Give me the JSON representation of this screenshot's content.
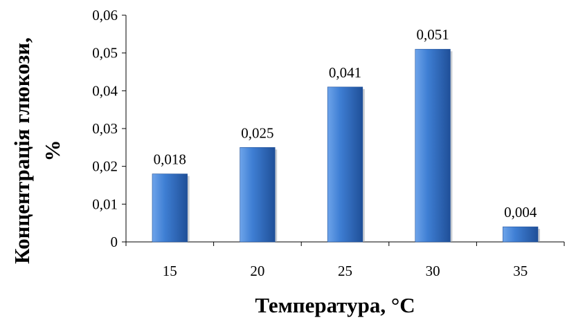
{
  "chart_data": {
    "type": "bar",
    "title": "",
    "xlabel": "Температура, °С",
    "ylabel_line1": "Концентрація глюкози,",
    "ylabel_line2": "%",
    "categories": [
      "15",
      "20",
      "25",
      "30",
      "35"
    ],
    "values": [
      0.018,
      0.025,
      0.041,
      0.051,
      0.004
    ],
    "data_labels": [
      "0,018",
      "0,025",
      "0,041",
      "0,051",
      "0,004"
    ],
    "ylim": [
      0,
      0.06
    ],
    "yticks": [
      0,
      0.01,
      0.02,
      0.03,
      0.04,
      0.05,
      0.06
    ],
    "ytick_labels": [
      "0",
      "0,01",
      "0,02",
      "0,03",
      "0,04",
      "0,05",
      "0,06"
    ],
    "grid": false,
    "legend": "none",
    "bar_color": "#3f7fd4",
    "bar_color_light": "#6ea4ea",
    "bar_color_dark": "#1f4f98"
  }
}
